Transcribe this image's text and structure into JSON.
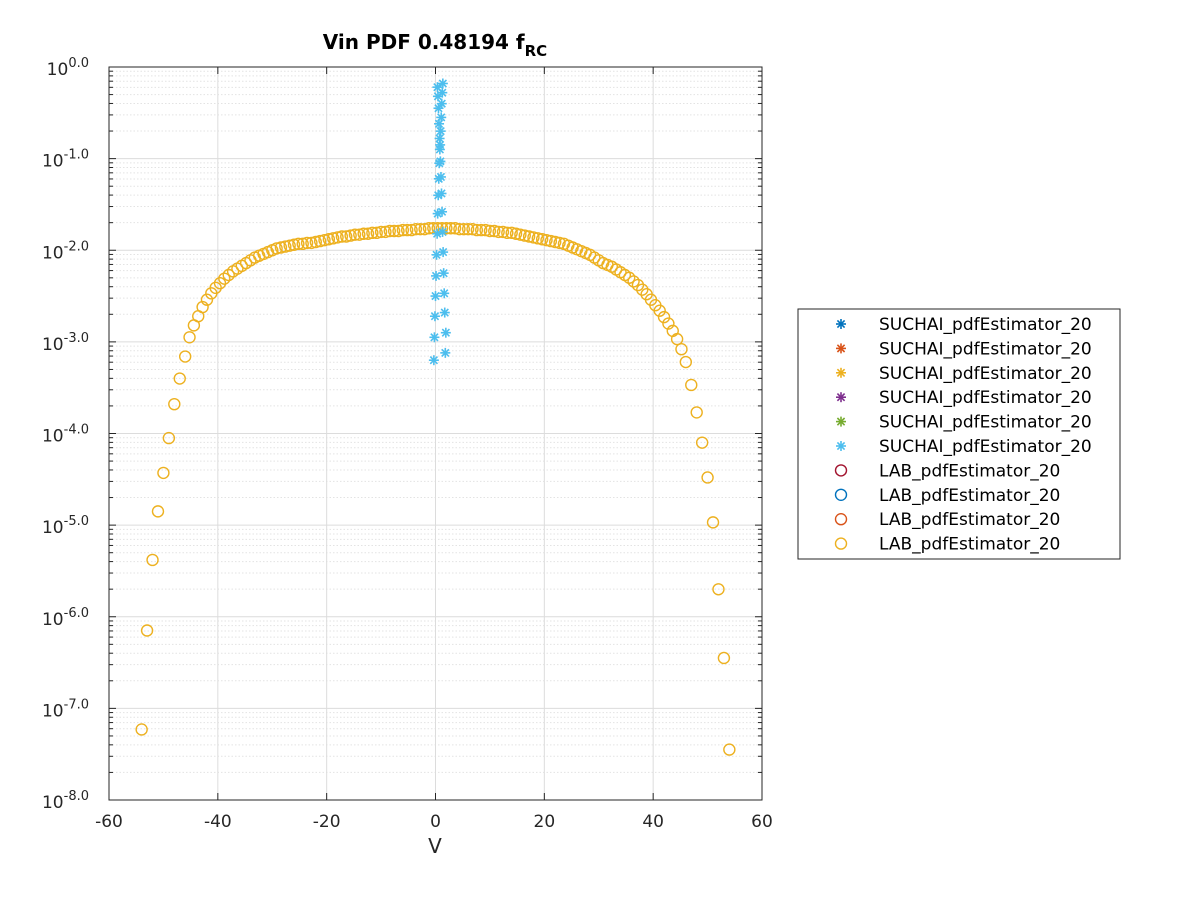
{
  "chart_data": {
    "type": "scatter",
    "title": "Vin PDF 0.48194 f",
    "title_subscript": "RC",
    "xlabel": "V",
    "ylabel": "",
    "xlim": [
      -60,
      60
    ],
    "ylim_log10": [
      -8,
      0
    ],
    "yscale": "log",
    "xticks": [
      -60,
      -40,
      -20,
      0,
      20,
      40,
      60
    ],
    "xtick_labels": [
      "-60",
      "-40",
      "-20",
      "0",
      "20",
      "40",
      "60"
    ],
    "ytick_exponents": [
      -8,
      -7,
      -6,
      -5,
      -4,
      -3,
      -2,
      -1,
      0
    ],
    "ytick_base": "10",
    "ytick_exponent_labels": [
      "-8.0",
      "-7.0",
      "-6.0",
      "-5.0",
      "-4.0",
      "-3.0",
      "-2.0",
      "-1.0",
      "0.0"
    ],
    "grid": true,
    "minor_grid": true,
    "legend_position": "outside-right",
    "legend": [
      {
        "label": "SUCHAI_pdfEstimator_20",
        "marker": "asterisk",
        "color": "#0072BD"
      },
      {
        "label": "SUCHAI_pdfEstimator_20",
        "marker": "asterisk",
        "color": "#D95319"
      },
      {
        "label": "SUCHAI_pdfEstimator_20",
        "marker": "asterisk",
        "color": "#EDB120"
      },
      {
        "label": "SUCHAI_pdfEstimator_20",
        "marker": "asterisk",
        "color": "#7E2F8E"
      },
      {
        "label": "SUCHAI_pdfEstimator_20",
        "marker": "asterisk",
        "color": "#77AC30"
      },
      {
        "label": "SUCHAI_pdfEstimator_20",
        "marker": "asterisk",
        "color": "#4DBEEE"
      },
      {
        "label": "LAB_pdfEstimator_20",
        "marker": "circle",
        "color": "#A2142F"
      },
      {
        "label": "LAB_pdfEstimator_20",
        "marker": "circle",
        "color": "#0072BD"
      },
      {
        "label": "LAB_pdfEstimator_20",
        "marker": "circle",
        "color": "#D95319"
      },
      {
        "label": "LAB_pdfEstimator_20",
        "marker": "circle",
        "color": "#EDB120"
      }
    ],
    "series": [
      {
        "marker": "asterisk",
        "color": "#4DBEEE",
        "x": [
          -0.3,
          1.8,
          -0.2,
          1.9,
          -0.1,
          1.7,
          0.0,
          1.6,
          0.1,
          1.5,
          0.2,
          1.4,
          0.3,
          1.3,
          0.4,
          1.2,
          0.5,
          1.1,
          0.6,
          1.0,
          0.7,
          0.9,
          0.8,
          0.85,
          0.75,
          0.95,
          0.65,
          1.05,
          0.55,
          1.15,
          0.45,
          1.25,
          0.35,
          1.35
        ],
        "log10y": [
          -3.2,
          -3.12,
          -2.95,
          -2.9,
          -2.72,
          -2.68,
          -2.5,
          -2.47,
          -2.28,
          -2.25,
          -2.05,
          -2.02,
          -1.82,
          -1.8,
          -1.6,
          -1.58,
          -1.4,
          -1.38,
          -1.22,
          -1.2,
          -1.05,
          -1.03,
          -0.9,
          -0.85,
          -0.78,
          -0.7,
          -0.62,
          -0.55,
          -0.45,
          -0.4,
          -0.32,
          -0.28,
          -0.22,
          -0.18
        ]
      },
      {
        "marker": "circle",
        "color": "#EDB120",
        "x": [
          -54.0,
          -53.0,
          -52.0,
          -51.0,
          -50.0,
          -49.0,
          -48.0,
          -47.0,
          -46.0,
          -45.2,
          -44.4,
          -43.6,
          -42.8,
          -42.0,
          -41.2,
          -40.4,
          -39.6,
          -38.8,
          -38.0,
          -37.2,
          -36.4,
          -35.6,
          -34.8,
          -34.0,
          -33.2,
          -32.4,
          -31.6,
          -30.8,
          -30.0,
          -29.2,
          -28.4,
          -27.6,
          -26.8,
          -26.0,
          -25.2,
          -24.4,
          -23.6,
          -22.8,
          -22.0,
          -21.2,
          -20.4,
          -19.6,
          -18.8,
          -18.0,
          -17.2,
          -16.4,
          -15.6,
          -14.8,
          -14.0,
          -13.2,
          -12.4,
          -11.6,
          -10.8,
          -10.0,
          -9.2,
          -8.4,
          -7.6,
          -6.8,
          -6.0,
          -5.2,
          -4.4,
          -3.6,
          -2.8,
          -2.0,
          -1.2,
          -0.4,
          0.4,
          1.2,
          2.0,
          2.8,
          3.6,
          4.4,
          5.2,
          6.0,
          6.8,
          7.6,
          8.4,
          9.2,
          10.0,
          10.8,
          11.6,
          12.4,
          13.2,
          14.0,
          14.8,
          15.6,
          16.4,
          17.2,
          18.0,
          18.8,
          19.6,
          20.4,
          21.2,
          22.0,
          22.8,
          23.6,
          24.4,
          25.2,
          26.0,
          26.8,
          27.6,
          28.4,
          29.2,
          30.0,
          30.8,
          31.6,
          32.4,
          33.2,
          34.0,
          34.8,
          35.6,
          36.4,
          37.2,
          38.0,
          38.8,
          39.6,
          40.4,
          41.2,
          42.0,
          42.8,
          43.6,
          44.4,
          45.2,
          46.0,
          47.0,
          48.0,
          49.0,
          50.0,
          51.0,
          52.0,
          53.0,
          54.0
        ],
        "log10y": [
          -7.23,
          -6.15,
          -5.38,
          -4.85,
          -4.43,
          -4.05,
          -3.68,
          -3.4,
          -3.16,
          -2.95,
          -2.82,
          -2.72,
          -2.62,
          -2.54,
          -2.47,
          -2.41,
          -2.36,
          -2.31,
          -2.27,
          -2.23,
          -2.2,
          -2.17,
          -2.14,
          -2.11,
          -2.08,
          -2.06,
          -2.04,
          -2.02,
          -2.0,
          -1.98,
          -1.97,
          -1.96,
          -1.95,
          -1.94,
          -1.93,
          -1.93,
          -1.92,
          -1.92,
          -1.91,
          -1.9,
          -1.89,
          -1.88,
          -1.87,
          -1.86,
          -1.85,
          -1.85,
          -1.84,
          -1.83,
          -1.83,
          -1.82,
          -1.82,
          -1.81,
          -1.81,
          -1.8,
          -1.8,
          -1.79,
          -1.79,
          -1.79,
          -1.78,
          -1.78,
          -1.78,
          -1.77,
          -1.77,
          -1.77,
          -1.76,
          -1.76,
          -1.76,
          -1.76,
          -1.76,
          -1.76,
          -1.76,
          -1.77,
          -1.77,
          -1.77,
          -1.77,
          -1.78,
          -1.78,
          -1.78,
          -1.79,
          -1.79,
          -1.8,
          -1.8,
          -1.81,
          -1.81,
          -1.82,
          -1.83,
          -1.84,
          -1.85,
          -1.86,
          -1.87,
          -1.88,
          -1.89,
          -1.9,
          -1.91,
          -1.92,
          -1.93,
          -1.95,
          -1.97,
          -1.99,
          -2.01,
          -2.03,
          -2.05,
          -2.08,
          -2.11,
          -2.14,
          -2.16,
          -2.18,
          -2.21,
          -2.24,
          -2.27,
          -2.3,
          -2.34,
          -2.38,
          -2.43,
          -2.48,
          -2.54,
          -2.6,
          -2.66,
          -2.73,
          -2.8,
          -2.88,
          -2.97,
          -3.08,
          -3.22,
          -3.47,
          -3.77,
          -4.1,
          -4.48,
          -4.97,
          -5.7,
          -6.45,
          -7.45
        ]
      }
    ]
  }
}
